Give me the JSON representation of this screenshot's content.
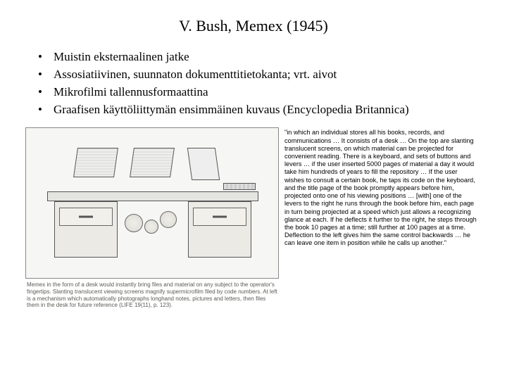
{
  "title": "V. Bush, Memex (1945)",
  "bullets": [
    "Muistin eksternaalinen jatke",
    "Assosiatiivinen, suunnaton dokumenttitietokanta; vrt. aivot",
    "Mikrofilmi tallennusformaattina",
    "Graafisen käyttöliittymän ensimmäinen kuvaus (Encyclopedia Britannica)"
  ],
  "figure": {
    "caption": "Memex in the form of a desk would instantly bring files and material on any subject to the operator's fingertips. Slanting translucent viewing screens magnify supermicrofilm filed by code numbers. At left is a mechanism which automatically photographs longhand notes, pictures and letters, then files them in the desk for future reference (LIFE 19(11), p. 123).",
    "colors": {
      "border": "#888888",
      "background": "#f6f6f4",
      "line": "#555555",
      "panel": "#eceae4"
    }
  },
  "quote": "\"in which an individual stores all his books, records, and communications … It consists of a desk … On the top are slanting translucent screens, on which material can be projected for convenient reading. There is a keyboard, and sets of buttons and levers … if the user inserted 5000 pages of material a day it would take him hundreds of years to fill the repository … If the user wishes to consult a certain book, he taps its code on the keyboard, and the title page of the book promptly appears before him, projected onto one of his viewing positions … [with] one of the levers to the right he runs through the book before him, each page in turn being projected at a speed which just allows a recognizing glance at each. If he deflects it further to the right, he steps through the book 10 pages at a time; still further at 100 pages at a time. Deflection to the left gives him the same control backwards … he can leave one item in position while he calls up another.\"",
  "style": {
    "title_fontsize": 22,
    "bullet_fontsize": 17,
    "quote_fontsize": 9.2,
    "quote_font": "Arial",
    "body_font": "Georgia",
    "background_color": "#ffffff",
    "text_color": "#000000",
    "caption_color": "#5a5a56"
  }
}
